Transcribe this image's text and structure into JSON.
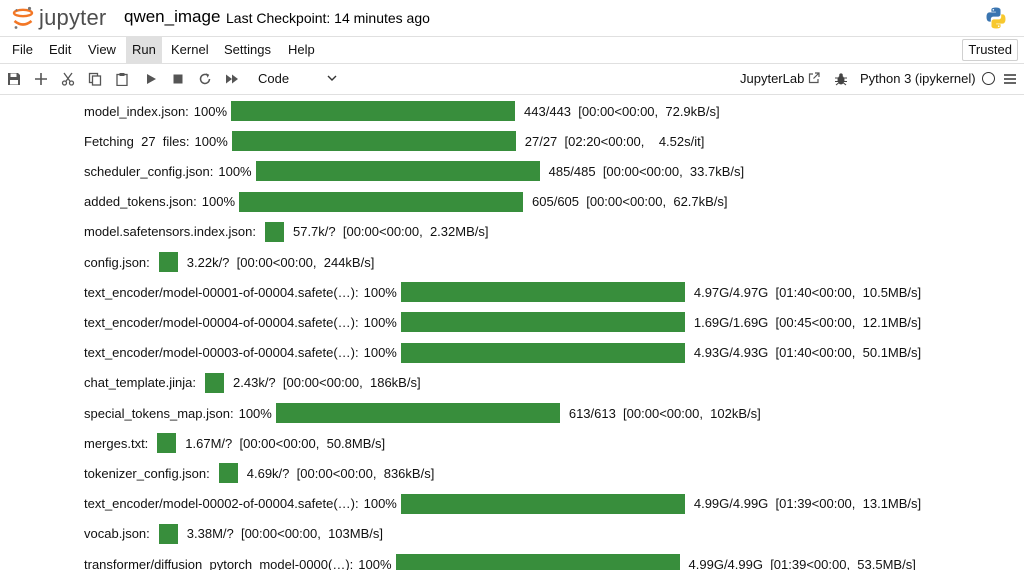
{
  "header": {
    "logo_text": "jupyter",
    "notebook_title": "qwen_image",
    "checkpoint": "Last Checkpoint: 14 minutes ago"
  },
  "menu": {
    "items": [
      "File",
      "Edit",
      "View",
      "Run",
      "Kernel",
      "Settings",
      "Help"
    ],
    "active": "Run",
    "trusted": "Trusted"
  },
  "toolbar": {
    "cell_type": "Code",
    "jupyterlab_label": "JupyterLab",
    "kernel_name": "Python 3 (ipykernel)"
  },
  "colors": {
    "progress_bar": "#388e3c",
    "jupyter_orange": "#f37726"
  },
  "progress_rows": [
    {
      "label": "model_index.json:",
      "percent": "100%",
      "fill": 1.0,
      "stats": "443/443  [00:00<00:00,  72.9kB/s]"
    },
    {
      "label": "Fetching  27  files:",
      "percent": "100%",
      "fill": 1.0,
      "stats": "27/27  [02:20<00:00,    4.52s/it]"
    },
    {
      "label": "scheduler_config.json:",
      "percent": "100%",
      "fill": 1.0,
      "stats": "485/485  [00:00<00:00,  33.7kB/s]"
    },
    {
      "label": "added_tokens.json:",
      "percent": "100%",
      "fill": 1.0,
      "stats": "605/605  [00:00<00:00,  62.7kB/s]"
    },
    {
      "label": "model.safetensors.index.json:",
      "percent": "",
      "fill": 0.066,
      "stats": "57.7k/?  [00:00<00:00,  2.32MB/s]"
    },
    {
      "label": "config.json:",
      "percent": "",
      "fill": 0.066,
      "stats": "3.22k/?  [00:00<00:00,  244kB/s]"
    },
    {
      "label": "text_encoder/model-00001-of-00004.safete(…):",
      "percent": "100%",
      "fill": 1.0,
      "stats": "4.97G/4.97G  [01:40<00:00,  10.5MB/s]"
    },
    {
      "label": "text_encoder/model-00004-of-00004.safete(…):",
      "percent": "100%",
      "fill": 1.0,
      "stats": "1.69G/1.69G  [00:45<00:00,  12.1MB/s]"
    },
    {
      "label": "text_encoder/model-00003-of-00004.safete(…):",
      "percent": "100%",
      "fill": 1.0,
      "stats": "4.93G/4.93G  [01:40<00:00,  50.1MB/s]"
    },
    {
      "label": "chat_template.jinja:",
      "percent": "",
      "fill": 0.066,
      "stats": "2.43k/?  [00:00<00:00,  186kB/s]"
    },
    {
      "label": "special_tokens_map.json:",
      "percent": "100%",
      "fill": 1.0,
      "stats": "613/613  [00:00<00:00,  102kB/s]"
    },
    {
      "label": "merges.txt:",
      "percent": "",
      "fill": 0.066,
      "stats": "1.67M/?  [00:00<00:00,  50.8MB/s]"
    },
    {
      "label": "tokenizer_config.json:",
      "percent": "",
      "fill": 0.066,
      "stats": "4.69k/?  [00:00<00:00,  836kB/s]"
    },
    {
      "label": "text_encoder/model-00002-of-00004.safete(…):",
      "percent": "100%",
      "fill": 1.0,
      "stats": "4.99G/4.99G  [01:39<00:00,  13.1MB/s]"
    },
    {
      "label": "vocab.json:",
      "percent": "",
      "fill": 0.066,
      "stats": "3.38M/?  [00:00<00:00,  103MB/s]"
    },
    {
      "label": "transformer/diffusion_pytorch_model-0000(…):",
      "percent": "100%",
      "fill": 1.0,
      "stats": "4.99G/4.99G  [01:39<00:00,  53.5MB/s]"
    }
  ]
}
